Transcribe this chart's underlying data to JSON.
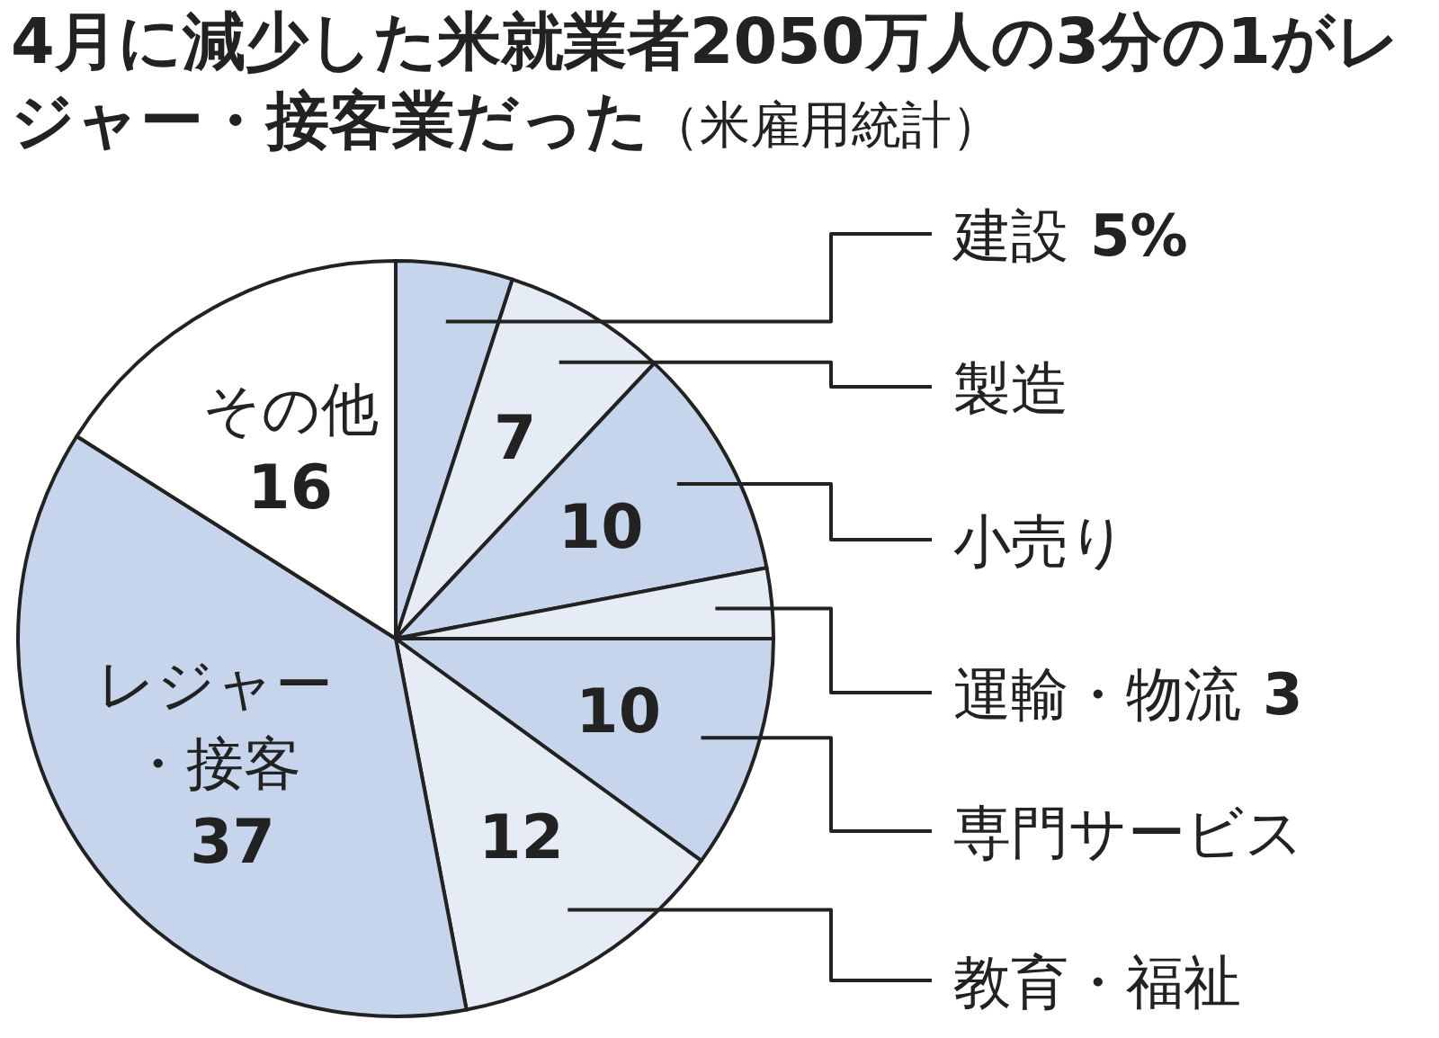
{
  "chart_data": {
    "type": "pie",
    "title": "4月に減少した米就業者2050万人の3分の1がレジャー・接客業だった",
    "subtitle": "（米雇用統計）",
    "categories": [
      "建設",
      "製造",
      "小売り",
      "運輸・物流",
      "専門サービス",
      "教育・福祉",
      "レジャー・接客",
      "その他"
    ],
    "values": [
      5,
      7,
      10,
      3,
      10,
      12,
      37,
      16
    ],
    "value_labels": [
      "5%",
      "7",
      "10",
      "3",
      "10",
      "12",
      "37",
      "16"
    ],
    "colors": [
      "#c6d4ec",
      "#e6ecf6",
      "#c6d4ec",
      "#e6ecf6",
      "#c6d4ec",
      "#e6ecf6",
      "#c6d4ec",
      "#ffffff"
    ]
  }
}
